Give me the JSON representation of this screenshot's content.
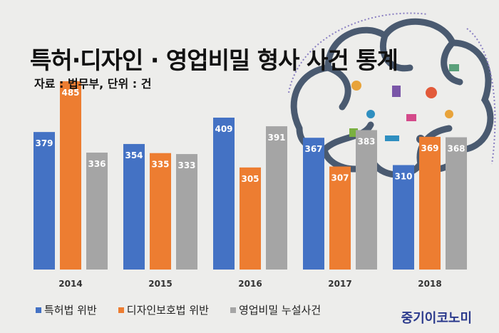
{
  "title": "특허·디자인 · 영업비밀 형사 사건 통계",
  "source": "자료 : 법무부, 단위 : 건",
  "brand": "중기이코노미",
  "chart_data": {
    "type": "bar",
    "title": "특허·디자인 · 영업비밀 형사 사건 통계",
    "categories": [
      "2014",
      "2015",
      "2016",
      "2017",
      "2018"
    ],
    "series": [
      {
        "name": "특허법 위반",
        "color": "#4472c4",
        "values": [
          379,
          354,
          409,
          367,
          310
        ]
      },
      {
        "name": "디자인보호법 위반",
        "color": "#ed7d31",
        "values": [
          485,
          335,
          305,
          307,
          369
        ]
      },
      {
        "name": "영업비밀 누설사건",
        "color": "#a5a5a5",
        "values": [
          336,
          333,
          391,
          383,
          368
        ]
      }
    ],
    "ylim": [
      92,
      500
    ],
    "xlabel": "",
    "ylabel": "",
    "legend": "bottom-left",
    "grid": false
  }
}
